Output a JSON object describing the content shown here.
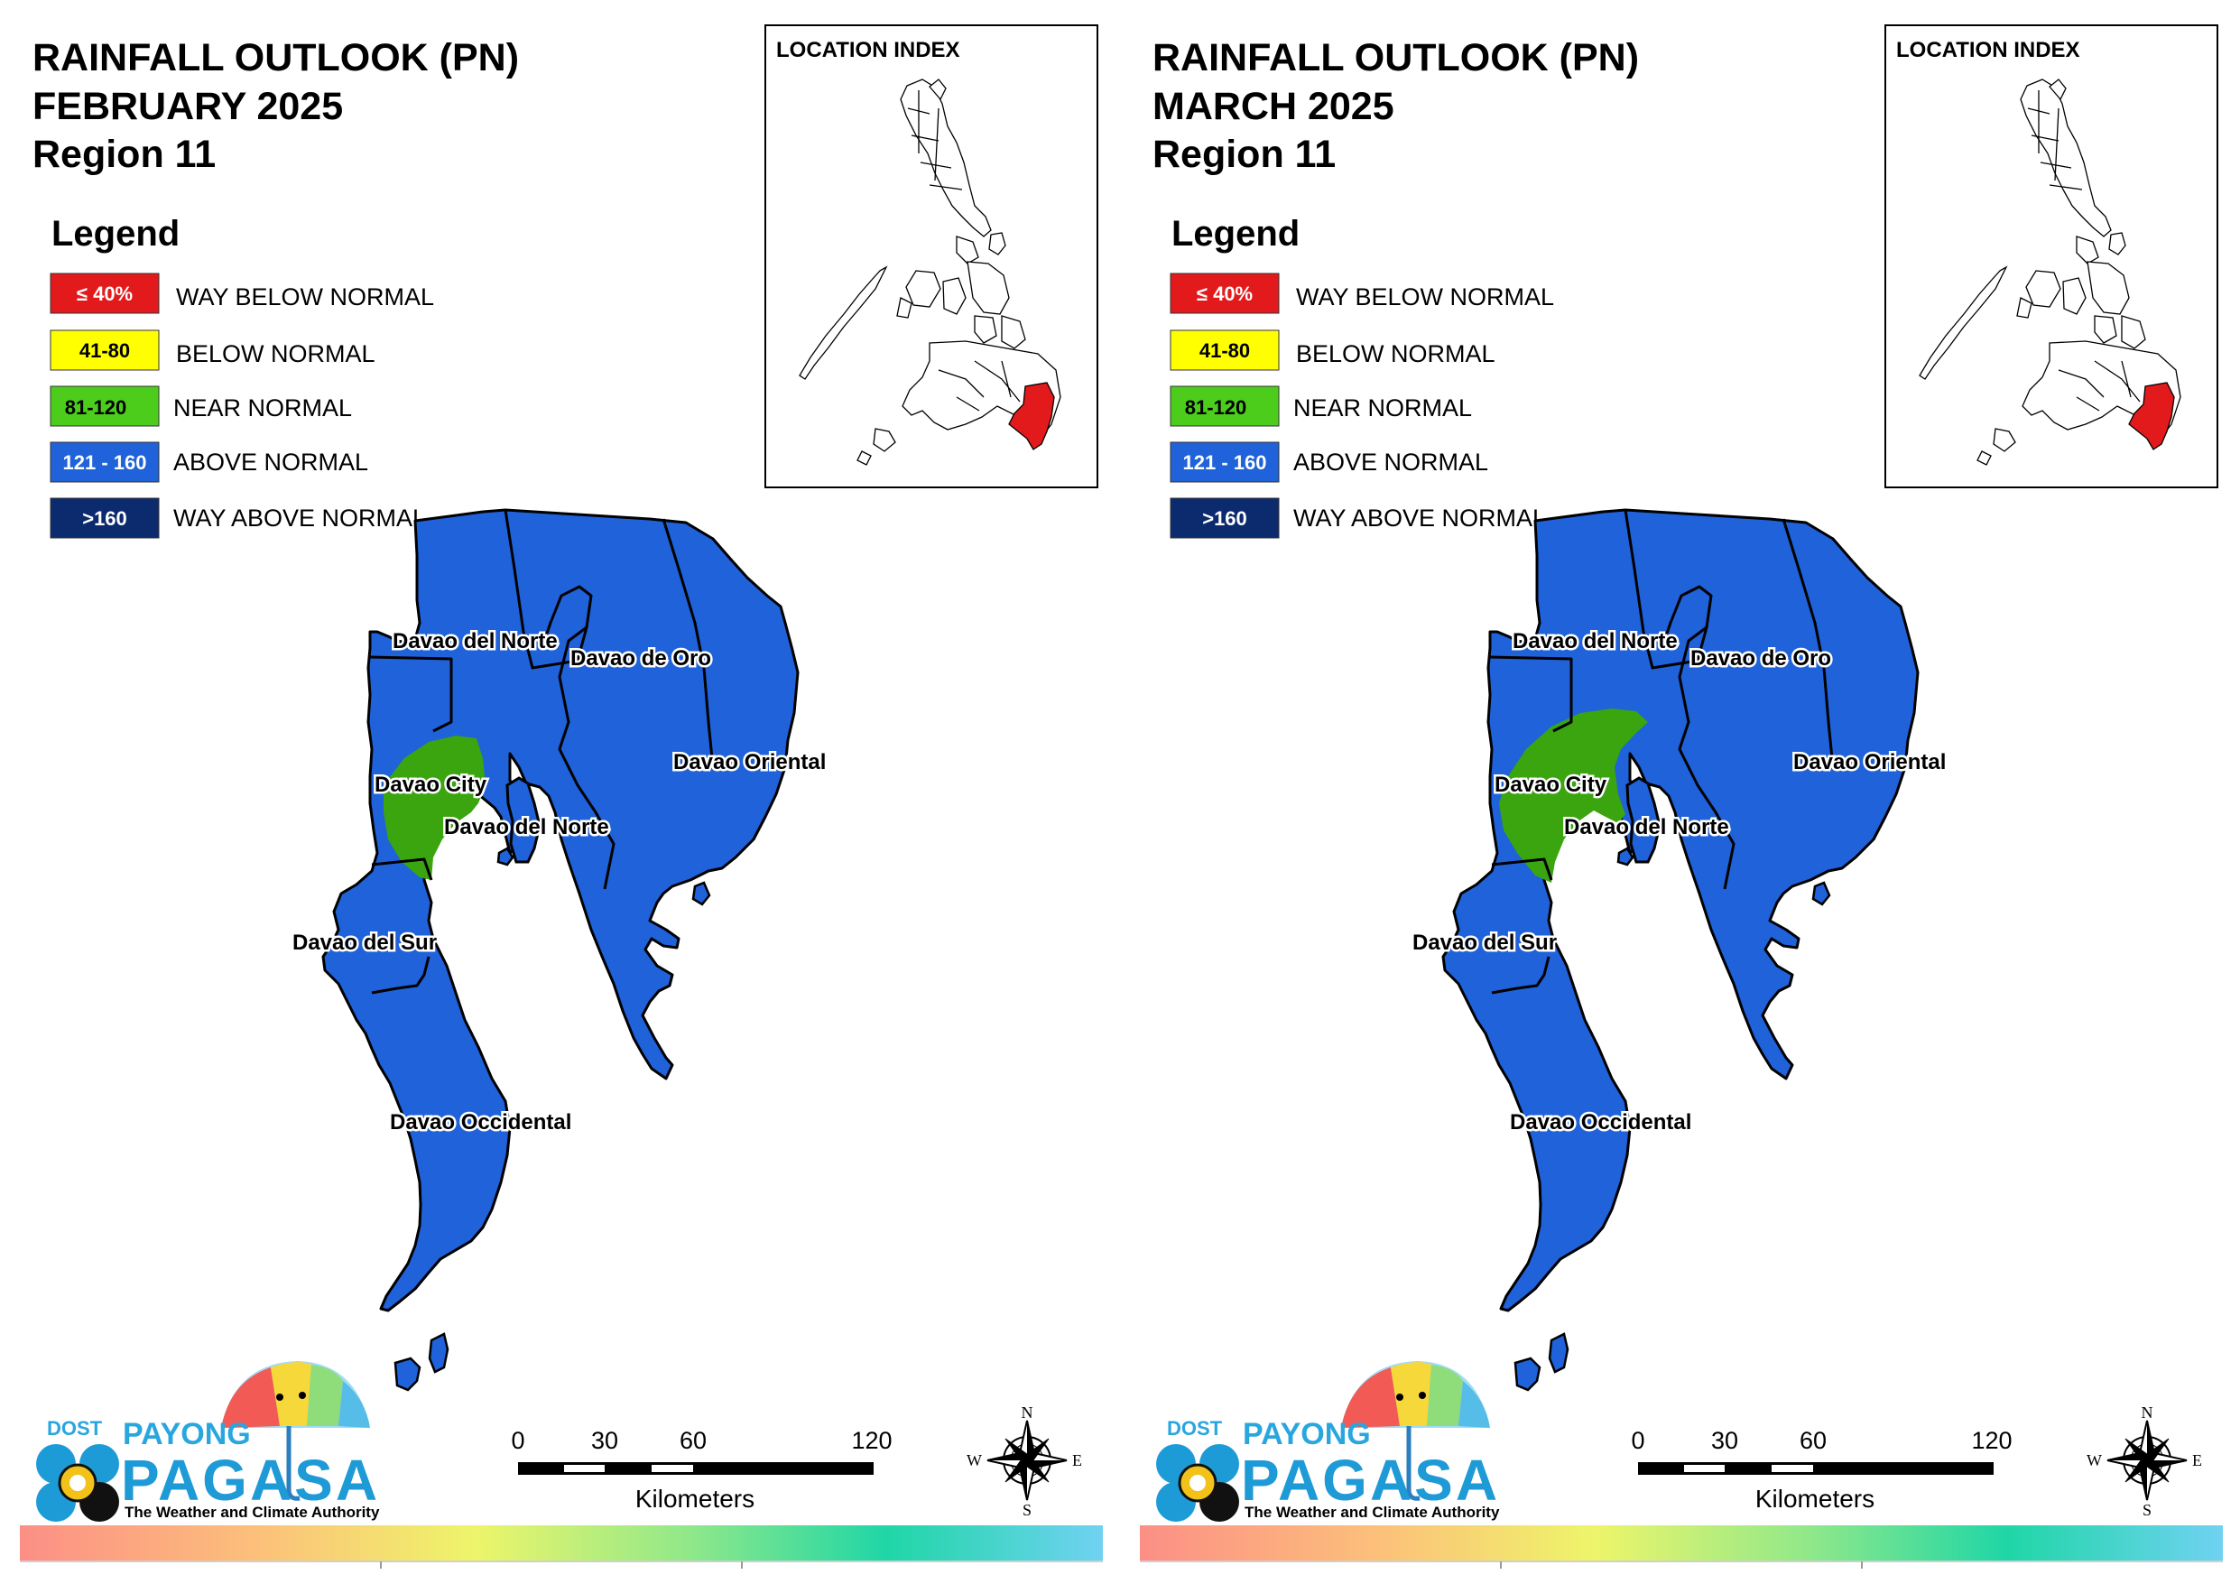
{
  "panels": [
    {
      "title": [
        "RAINFALL OUTLOOK (PN)",
        "FEBRUARY 2025",
        "Region 11"
      ],
      "green_zone": "small",
      "legend_title": "Legend",
      "legend": [
        {
          "range": "≤ 40%",
          "label": "WAY BELOW NORMAL",
          "color": "#e31a1c",
          "text_color": "#ffffff"
        },
        {
          "range": "41-80",
          "label": "BELOW NORMAL",
          "color": "#ffff00",
          "text_color": "#000000"
        },
        {
          "range": "81-120",
          "label": "NEAR NORMAL",
          "color": "#4ccd1c",
          "text_color": "#000000"
        },
        {
          "range": "121 - 160",
          "label": "ABOVE NORMAL",
          "color": "#1f62d9",
          "text_color": "#ffffff"
        },
        {
          "range": ">160",
          "label": "WAY ABOVE NORMAL",
          "color": "#0c2a6e",
          "text_color": "#ffffff"
        }
      ],
      "location_index_title": "LOCATION INDEX",
      "provinces": [
        "Davao del Norte",
        "Davao de Oro",
        "Davao Oriental",
        "Davao City",
        "Davao del Norte",
        "Davao del Sur",
        "Davao Occidental"
      ],
      "scale": {
        "ticks": [
          "0",
          "30",
          "60",
          "120"
        ],
        "unit": "Kilometers"
      },
      "compass": {
        "n": "N",
        "e": "E",
        "s": "S",
        "w": "W"
      },
      "logo": {
        "dost": "DOST",
        "payong": "PAYONG",
        "pagasa": "PAGASA",
        "tagline": "The Weather and Climate Authority"
      }
    },
    {
      "title": [
        "RAINFALL OUTLOOK (PN)",
        "MARCH 2025",
        "Region 11"
      ],
      "green_zone": "large",
      "legend_title": "Legend",
      "legend": [
        {
          "range": "≤ 40%",
          "label": "WAY BELOW NORMAL",
          "color": "#e31a1c",
          "text_color": "#ffffff"
        },
        {
          "range": "41-80",
          "label": "BELOW NORMAL",
          "color": "#ffff00",
          "text_color": "#000000"
        },
        {
          "range": "81-120",
          "label": "NEAR NORMAL",
          "color": "#4ccd1c",
          "text_color": "#000000"
        },
        {
          "range": "121 - 160",
          "label": "ABOVE NORMAL",
          "color": "#1f62d9",
          "text_color": "#ffffff"
        },
        {
          "range": ">160",
          "label": "WAY ABOVE NORMAL",
          "color": "#0c2a6e",
          "text_color": "#ffffff"
        }
      ],
      "location_index_title": "LOCATION INDEX",
      "provinces": [
        "Davao del Norte",
        "Davao de Oro",
        "Davao Oriental",
        "Davao City",
        "Davao del Norte",
        "Davao del Sur",
        "Davao Occidental"
      ],
      "scale": {
        "ticks": [
          "0",
          "30",
          "60",
          "120"
        ],
        "unit": "Kilometers"
      },
      "compass": {
        "n": "N",
        "e": "E",
        "s": "S",
        "w": "W"
      },
      "logo": {
        "dost": "DOST",
        "payong": "PAYONG",
        "pagasa": "PAGASA",
        "tagline": "The Weather and Climate Authority"
      }
    }
  ],
  "colors": {
    "region_fill": "#1f62d9",
    "near_normal_fill": "#3aa50f",
    "highlight_region": "#e31a1c"
  }
}
